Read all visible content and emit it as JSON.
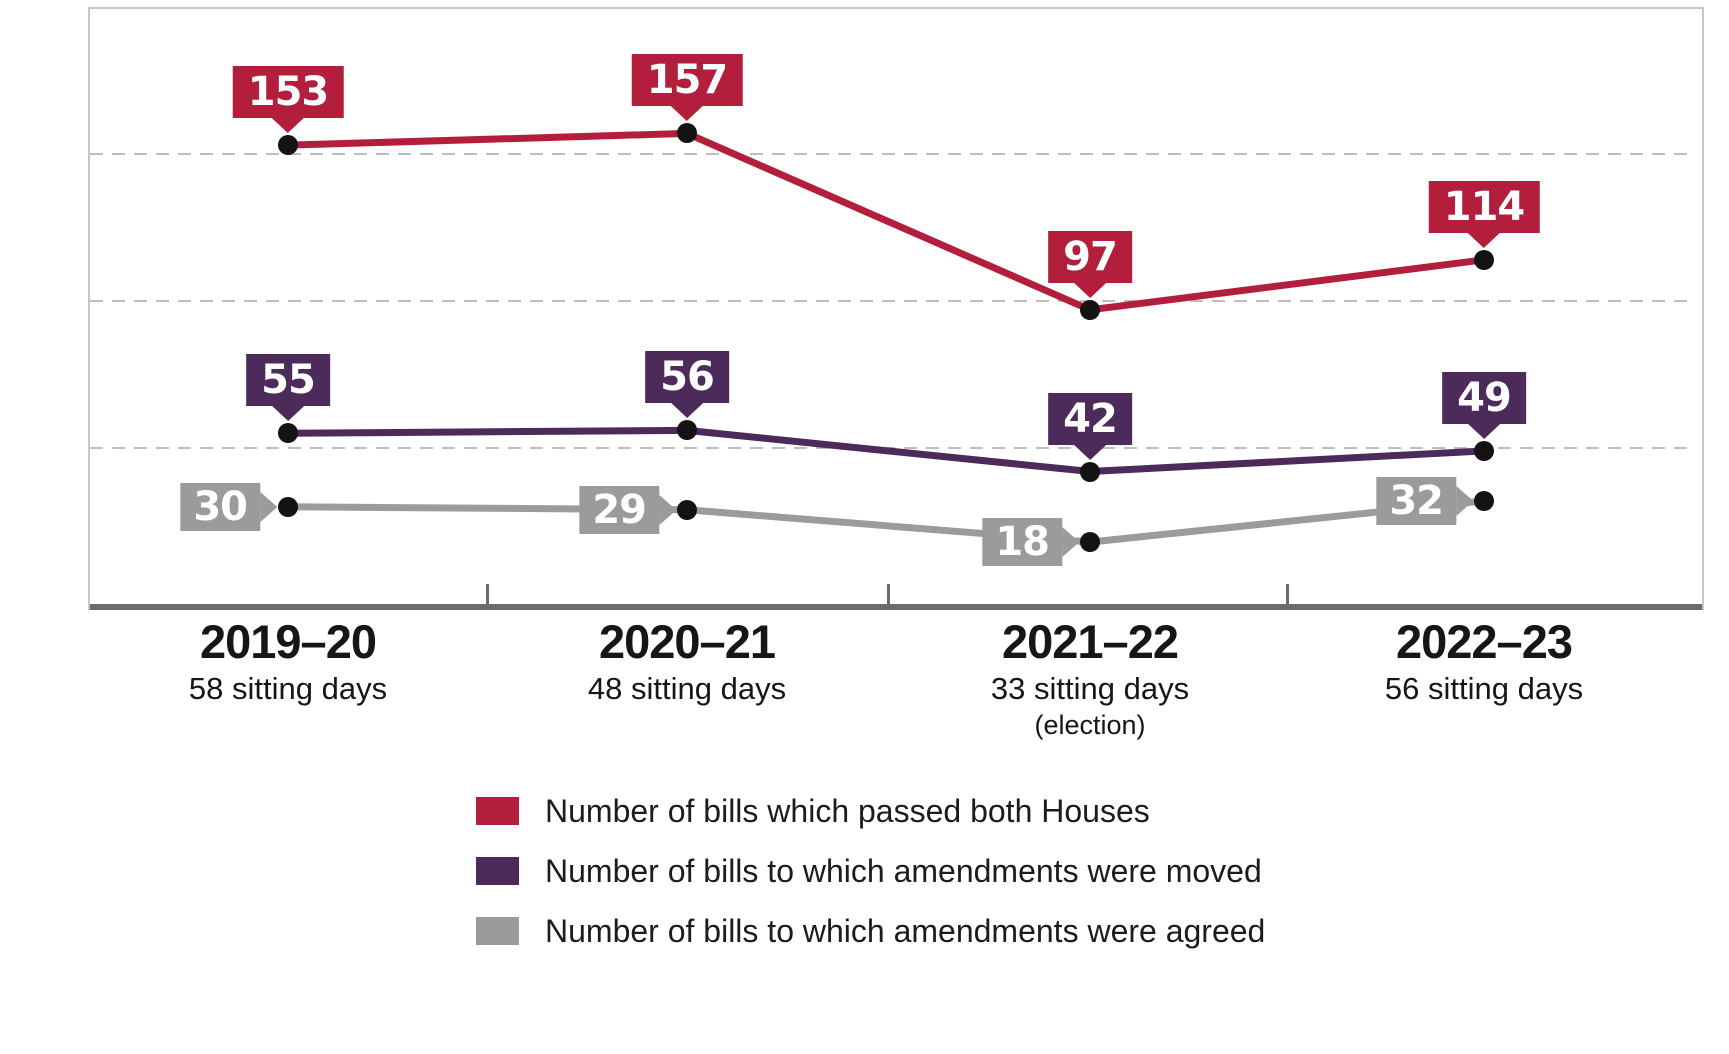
{
  "chart_data": {
    "type": "line",
    "categories": [
      {
        "year": "2019–20",
        "sitting_days": "58 sitting days",
        "note": ""
      },
      {
        "year": "2020–21",
        "sitting_days": "48 sitting days",
        "note": ""
      },
      {
        "year": "2021–22",
        "sitting_days": "33 sitting days",
        "note": "(election)"
      },
      {
        "year": "2022–23",
        "sitting_days": "56 sitting days",
        "note": ""
      }
    ],
    "series": [
      {
        "name": "Number of bills which passed both Houses",
        "color": "#b21e3c",
        "values": [
          153,
          157,
          97,
          114
        ],
        "label_position": "above"
      },
      {
        "name": "Number of bills to which amendments were moved",
        "color": "#4c2a59",
        "values": [
          55,
          56,
          42,
          49
        ],
        "label_position": "above"
      },
      {
        "name": "Number of bills to which amendments were agreed",
        "color": "#9b9b9b",
        "values": [
          30,
          29,
          18,
          32
        ],
        "label_position": "left"
      }
    ],
    "ylim": [
      0,
      200
    ],
    "gridline_values": [
      50,
      100,
      150
    ],
    "grid_on": true,
    "legend_position": "bottom",
    "xlabel": "",
    "ylabel": ""
  },
  "style": {
    "axis_color": "#6b6b6b",
    "grid_color": "#bdbdbd",
    "border_color": "#c6c6c6",
    "dot_color": "#131313",
    "background": "#ffffff",
    "text_color": "#161616"
  }
}
